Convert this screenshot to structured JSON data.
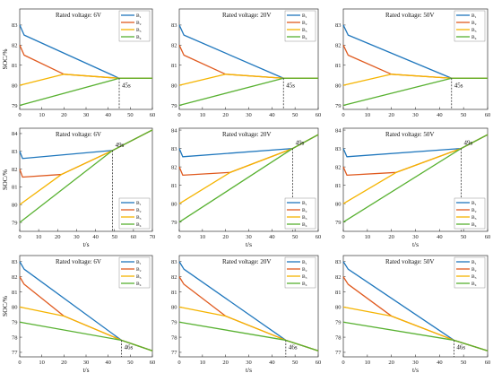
{
  "chart_data": [
    {
      "type": "line",
      "annotation": "Rated voltage: 6V",
      "marker": "45s",
      "marker_x": 45,
      "xlabel": "",
      "ylabel": "SOC/%",
      "xlim": [
        0,
        60
      ],
      "ylim": [
        78.8,
        83.8
      ],
      "xticks": [
        0,
        10,
        20,
        30,
        40,
        50,
        60
      ],
      "yticks": [
        79,
        80,
        81,
        82,
        83
      ],
      "legend": "top-right",
      "series": [
        {
          "name": "B₁",
          "color": "#1f77bd",
          "points": [
            [
              0,
              83.0
            ],
            [
              2,
              82.5
            ],
            [
              45,
              80.35
            ],
            [
              60,
              80.35
            ]
          ]
        },
        {
          "name": "B₂",
          "color": "#e05a1f",
          "points": [
            [
              0,
              82.0
            ],
            [
              2,
              81.5
            ],
            [
              20,
              80.55
            ],
            [
              45,
              80.35
            ],
            [
              60,
              80.35
            ]
          ]
        },
        {
          "name": "B₃",
          "color": "#f5b400",
          "points": [
            [
              0,
              80.0
            ],
            [
              20,
              80.55
            ],
            [
              45,
              80.35
            ],
            [
              60,
              80.35
            ]
          ]
        },
        {
          "name": "B₄",
          "color": "#58b131",
          "points": [
            [
              0,
              79.0
            ],
            [
              45,
              80.35
            ],
            [
              60,
              80.35
            ]
          ]
        }
      ]
    },
    {
      "type": "line",
      "annotation": "Rated voltage: 20V",
      "marker": "45s",
      "marker_x": 45,
      "xlabel": "",
      "ylabel": "",
      "xlim": [
        0,
        60
      ],
      "ylim": [
        78.8,
        83.8
      ],
      "xticks": [
        0,
        10,
        20,
        30,
        40,
        50,
        60
      ],
      "yticks": [
        79,
        80,
        81,
        82,
        83
      ],
      "legend": "top-right",
      "series": [
        {
          "name": "B₁",
          "color": "#1f77bd",
          "points": [
            [
              0,
              83.0
            ],
            [
              2,
              82.5
            ],
            [
              45,
              80.35
            ],
            [
              60,
              80.35
            ]
          ]
        },
        {
          "name": "B₂",
          "color": "#e05a1f",
          "points": [
            [
              0,
              82.0
            ],
            [
              2,
              81.5
            ],
            [
              20,
              80.55
            ],
            [
              45,
              80.35
            ],
            [
              60,
              80.35
            ]
          ]
        },
        {
          "name": "B₃",
          "color": "#f5b400",
          "points": [
            [
              0,
              80.0
            ],
            [
              20,
              80.55
            ],
            [
              45,
              80.35
            ],
            [
              60,
              80.35
            ]
          ]
        },
        {
          "name": "B₄",
          "color": "#58b131",
          "points": [
            [
              0,
              79.0
            ],
            [
              45,
              80.35
            ],
            [
              60,
              80.35
            ]
          ]
        }
      ]
    },
    {
      "type": "line",
      "annotation": "Rated voltage: 50V",
      "marker": "45s",
      "marker_x": 45,
      "xlabel": "",
      "ylabel": "",
      "xlim": [
        0,
        60
      ],
      "ylim": [
        78.8,
        83.8
      ],
      "xticks": [
        0,
        10,
        20,
        30,
        40,
        50,
        60
      ],
      "yticks": [
        79,
        80,
        81,
        82,
        83
      ],
      "legend": "top-right",
      "series": [
        {
          "name": "B₁",
          "color": "#1f77bd",
          "points": [
            [
              0,
              83.0
            ],
            [
              2,
              82.5
            ],
            [
              45,
              80.35
            ],
            [
              60,
              80.35
            ]
          ]
        },
        {
          "name": "B₂",
          "color": "#e05a1f",
          "points": [
            [
              0,
              82.0
            ],
            [
              2,
              81.5
            ],
            [
              20,
              80.55
            ],
            [
              45,
              80.35
            ],
            [
              60,
              80.35
            ]
          ]
        },
        {
          "name": "B₃",
          "color": "#f5b400",
          "points": [
            [
              0,
              80.0
            ],
            [
              20,
              80.55
            ],
            [
              45,
              80.35
            ],
            [
              60,
              80.35
            ]
          ]
        },
        {
          "name": "B₄",
          "color": "#58b131",
          "points": [
            [
              0,
              79.0
            ],
            [
              45,
              80.35
            ],
            [
              60,
              80.35
            ]
          ]
        }
      ]
    },
    {
      "type": "line",
      "annotation": "Rated voltage: 6V",
      "marker": "49s",
      "marker_x": 49,
      "xlabel": "t/s",
      "ylabel": "SOC/%",
      "xlim": [
        0,
        70
      ],
      "ylim": [
        78.5,
        84.3
      ],
      "xticks": [
        0,
        10,
        20,
        30,
        40,
        50,
        60,
        70
      ],
      "yticks": [
        79,
        80,
        81,
        82,
        83,
        84
      ],
      "legend": "bottom-right",
      "series": [
        {
          "name": "B₁",
          "color": "#1f77bd",
          "points": [
            [
              0,
              83.0
            ],
            [
              1.5,
              82.6
            ],
            [
              49,
              83.05
            ],
            [
              70,
              84.2
            ]
          ]
        },
        {
          "name": "B₂",
          "color": "#e05a1f",
          "points": [
            [
              0,
              82.0
            ],
            [
              1.5,
              81.55
            ],
            [
              22,
              81.7
            ],
            [
              49,
              83.05
            ],
            [
              70,
              84.2
            ]
          ]
        },
        {
          "name": "B₃",
          "color": "#f5b400",
          "points": [
            [
              0,
              80.0
            ],
            [
              22,
              81.7
            ],
            [
              49,
              83.05
            ],
            [
              70,
              84.2
            ]
          ]
        },
        {
          "name": "B₄",
          "color": "#58b131",
          "points": [
            [
              0,
              79.0
            ],
            [
              49,
              83.05
            ],
            [
              70,
              84.2
            ]
          ]
        }
      ]
    },
    {
      "type": "line",
      "annotation": "Rated voltage: 20V",
      "marker": "49s",
      "marker_x": 49,
      "xlabel": "t/s",
      "ylabel": "",
      "xlim": [
        0,
        60
      ],
      "ylim": [
        78.5,
        84.1
      ],
      "xticks": [
        0,
        10,
        20,
        30,
        40,
        50,
        60
      ],
      "yticks": [
        79,
        80,
        81,
        82,
        83,
        84
      ],
      "legend": "bottom-right",
      "series": [
        {
          "name": "B₁",
          "color": "#1f77bd",
          "points": [
            [
              0,
              83.0
            ],
            [
              1.5,
              82.55
            ],
            [
              49,
              83.0
            ],
            [
              60,
              83.75
            ]
          ]
        },
        {
          "name": "B₂",
          "color": "#e05a1f",
          "points": [
            [
              0,
              82.0
            ],
            [
              1.5,
              81.55
            ],
            [
              22,
              81.7
            ],
            [
              49,
              83.0
            ],
            [
              60,
              83.75
            ]
          ]
        },
        {
          "name": "B₃",
          "color": "#f5b400",
          "points": [
            [
              0,
              80.0
            ],
            [
              22,
              81.7
            ],
            [
              49,
              83.0
            ],
            [
              60,
              83.75
            ]
          ]
        },
        {
          "name": "B₄",
          "color": "#58b131",
          "points": [
            [
              0,
              79.0
            ],
            [
              49,
              83.0
            ],
            [
              60,
              83.75
            ]
          ]
        }
      ]
    },
    {
      "type": "line",
      "annotation": "Rated voltage: 50V",
      "marker": "49s",
      "marker_x": 49,
      "xlabel": "t/s",
      "ylabel": "",
      "xlim": [
        0,
        60
      ],
      "ylim": [
        78.5,
        84.1
      ],
      "xticks": [
        0,
        10,
        20,
        30,
        40,
        50,
        60
      ],
      "yticks": [
        79,
        80,
        81,
        82,
        83,
        84
      ],
      "legend": "bottom-right",
      "series": [
        {
          "name": "B₁",
          "color": "#1f77bd",
          "points": [
            [
              0,
              83.0
            ],
            [
              1.5,
              82.55
            ],
            [
              49,
              83.0
            ],
            [
              60,
              83.75
            ]
          ]
        },
        {
          "name": "B₂",
          "color": "#e05a1f",
          "points": [
            [
              0,
              82.0
            ],
            [
              1.5,
              81.55
            ],
            [
              22,
              81.7
            ],
            [
              49,
              83.0
            ],
            [
              60,
              83.75
            ]
          ]
        },
        {
          "name": "B₃",
          "color": "#f5b400",
          "points": [
            [
              0,
              80.0
            ],
            [
              22,
              81.7
            ],
            [
              49,
              83.0
            ],
            [
              60,
              83.75
            ]
          ]
        },
        {
          "name": "B₄",
          "color": "#58b131",
          "points": [
            [
              0,
              79.0
            ],
            [
              49,
              83.0
            ],
            [
              60,
              83.75
            ]
          ]
        }
      ]
    },
    {
      "type": "line",
      "annotation": "Rated voltage: 6V",
      "marker": "46s",
      "marker_x": 46,
      "xlabel": "t/s",
      "ylabel": "SOC/%",
      "xlim": [
        0,
        60
      ],
      "ylim": [
        76.7,
        83.4
      ],
      "xticks": [
        0,
        10,
        20,
        30,
        40,
        50,
        60
      ],
      "yticks": [
        77,
        78,
        79,
        80,
        81,
        82,
        83
      ],
      "legend": "top-right",
      "series": [
        {
          "name": "B₁",
          "color": "#1f77bd",
          "points": [
            [
              0,
              83.0
            ],
            [
              2,
              82.5
            ],
            [
              46,
              77.8
            ],
            [
              60,
              77.1
            ]
          ]
        },
        {
          "name": "B₂",
          "color": "#e05a1f",
          "points": [
            [
              0,
              82.0
            ],
            [
              2,
              81.5
            ],
            [
              20,
              79.4
            ],
            [
              46,
              77.8
            ],
            [
              60,
              77.1
            ]
          ]
        },
        {
          "name": "B₃",
          "color": "#f5b400",
          "points": [
            [
              0,
              80.0
            ],
            [
              20,
              79.4
            ],
            [
              46,
              77.8
            ],
            [
              60,
              77.1
            ]
          ]
        },
        {
          "name": "B₄",
          "color": "#58b131",
          "points": [
            [
              0,
              79.0
            ],
            [
              46,
              77.8
            ],
            [
              60,
              77.1
            ]
          ]
        }
      ]
    },
    {
      "type": "line",
      "annotation": "Rated voltage: 20V",
      "marker": "46s",
      "marker_x": 46,
      "xlabel": "t/s",
      "ylabel": "",
      "xlim": [
        0,
        60
      ],
      "ylim": [
        76.7,
        83.4
      ],
      "xticks": [
        0,
        10,
        20,
        30,
        40,
        50,
        60
      ],
      "yticks": [
        77,
        78,
        79,
        80,
        81,
        82,
        83
      ],
      "legend": "top-right",
      "series": [
        {
          "name": "B₁",
          "color": "#1f77bd",
          "points": [
            [
              0,
              83.0
            ],
            [
              2,
              82.5
            ],
            [
              46,
              77.8
            ],
            [
              60,
              77.1
            ]
          ]
        },
        {
          "name": "B₂",
          "color": "#e05a1f",
          "points": [
            [
              0,
              82.0
            ],
            [
              2,
              81.5
            ],
            [
              20,
              79.4
            ],
            [
              46,
              77.8
            ],
            [
              60,
              77.1
            ]
          ]
        },
        {
          "name": "B₃",
          "color": "#f5b400",
          "points": [
            [
              0,
              80.0
            ],
            [
              20,
              79.4
            ],
            [
              46,
              77.8
            ],
            [
              60,
              77.1
            ]
          ]
        },
        {
          "name": "B₄",
          "color": "#58b131",
          "points": [
            [
              0,
              79.0
            ],
            [
              46,
              77.8
            ],
            [
              60,
              77.1
            ]
          ]
        }
      ]
    },
    {
      "type": "line",
      "annotation": "Rated voltage: 50V",
      "marker": "46s",
      "marker_x": 46,
      "xlabel": "t/s",
      "ylabel": "",
      "xlim": [
        0,
        60
      ],
      "ylim": [
        76.7,
        83.4
      ],
      "xticks": [
        0,
        10,
        20,
        30,
        40,
        50,
        60
      ],
      "yticks": [
        77,
        78,
        79,
        80,
        81,
        82,
        83
      ],
      "legend": "top-right",
      "series": [
        {
          "name": "B₁",
          "color": "#1f77bd",
          "points": [
            [
              0,
              83.0
            ],
            [
              2,
              82.5
            ],
            [
              46,
              77.8
            ],
            [
              60,
              77.1
            ]
          ]
        },
        {
          "name": "B₂",
          "color": "#e05a1f",
          "points": [
            [
              0,
              82.0
            ],
            [
              2,
              81.5
            ],
            [
              20,
              79.4
            ],
            [
              46,
              77.8
            ],
            [
              60,
              77.1
            ]
          ]
        },
        {
          "name": "B₃",
          "color": "#f5b400",
          "points": [
            [
              0,
              80.0
            ],
            [
              20,
              79.4
            ],
            [
              46,
              77.8
            ],
            [
              60,
              77.1
            ]
          ]
        },
        {
          "name": "B₄",
          "color": "#58b131",
          "points": [
            [
              0,
              79.0
            ],
            [
              46,
              77.8
            ],
            [
              60,
              77.1
            ]
          ]
        }
      ]
    }
  ]
}
